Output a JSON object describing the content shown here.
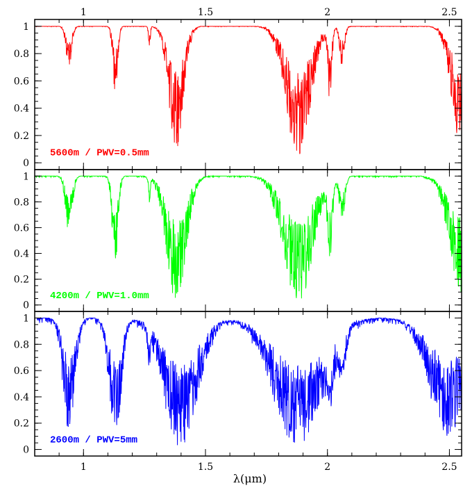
{
  "chart_data": {
    "type": "line",
    "xlabel": "λ(μm)",
    "ylabel": "",
    "xlim": [
      0.8,
      2.55
    ],
    "ylim": [
      -0.05,
      1.05
    ],
    "x_major_ticks": [
      1,
      1.5,
      2,
      2.5
    ],
    "x_tick_labels": [
      "1",
      "1.5",
      "2",
      "2.5"
    ],
    "y_major_ticks": [
      0,
      0.2,
      0.4,
      0.6,
      0.8,
      1
    ],
    "y_tick_labels": [
      "0",
      "0.2",
      "0.4",
      "0.6",
      "0.8",
      "1"
    ],
    "grid": false,
    "layout": "three stacked panels sharing x axis",
    "panels": [
      {
        "label": "5600m / PWV=0.5mm",
        "color": "#ff0000",
        "bands": [
          {
            "center": 0.94,
            "depth": 0.3,
            "width": 0.012
          },
          {
            "center": 1.13,
            "depth": 0.5,
            "width": 0.01
          },
          {
            "center": 1.27,
            "depth": 0.15,
            "width": 0.004
          },
          {
            "center": 1.38,
            "depth": 0.95,
            "width": 0.03
          },
          {
            "center": 1.88,
            "depth": 0.97,
            "width": 0.05
          },
          {
            "center": 2.01,
            "depth": 0.6,
            "width": 0.008
          },
          {
            "center": 2.06,
            "depth": 0.3,
            "width": 0.01
          },
          {
            "center": 2.55,
            "depth": 0.9,
            "width": 0.04
          }
        ]
      },
      {
        "label": "4200m / PWV=1.0mm",
        "color": "#00ff00",
        "bands": [
          {
            "center": 0.94,
            "depth": 0.45,
            "width": 0.014
          },
          {
            "center": 1.13,
            "depth": 0.75,
            "width": 0.012
          },
          {
            "center": 1.27,
            "depth": 0.2,
            "width": 0.004
          },
          {
            "center": 1.38,
            "depth": 1.0,
            "width": 0.04
          },
          {
            "center": 1.88,
            "depth": 1.0,
            "width": 0.06
          },
          {
            "center": 2.01,
            "depth": 0.65,
            "width": 0.01
          },
          {
            "center": 2.06,
            "depth": 0.35,
            "width": 0.012
          },
          {
            "center": 2.55,
            "depth": 0.9,
            "width": 0.05
          }
        ]
      },
      {
        "label": "2600m / PWV=5mm",
        "color": "#0000ff",
        "bands": [
          {
            "center": 0.94,
            "depth": 0.85,
            "width": 0.025
          },
          {
            "center": 1.13,
            "depth": 0.95,
            "width": 0.025
          },
          {
            "center": 1.27,
            "depth": 0.3,
            "width": 0.006
          },
          {
            "center": 1.4,
            "depth": 1.0,
            "width": 0.07
          },
          {
            "center": 1.88,
            "depth": 1.0,
            "width": 0.1
          },
          {
            "center": 2.01,
            "depth": 0.5,
            "width": 0.015
          },
          {
            "center": 2.06,
            "depth": 0.4,
            "width": 0.015
          },
          {
            "center": 2.5,
            "depth": 0.9,
            "width": 0.08
          }
        ]
      }
    ]
  }
}
